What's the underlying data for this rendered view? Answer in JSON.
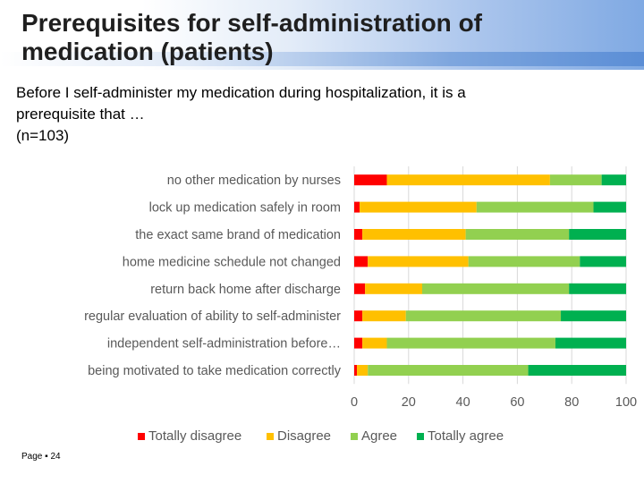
{
  "slide": {
    "title_line1": "Prerequisites for self-administration of",
    "title_line2": "medication  (patients)",
    "subtitle_line1": "Before I self-administer my medication during hospitalization, it is a",
    "subtitle_line2": "prerequisite that …",
    "subtitle_line3": "(n=103)",
    "footer": "Page ▪ 24"
  },
  "chart_data": {
    "type": "bar",
    "orientation": "horizontal",
    "stacked": true,
    "categories": [
      "no other medication by nurses",
      "lock up medication safely in room",
      "the exact same brand of medication",
      "home medicine schedule not changed",
      "return back home after discharge",
      "regular evaluation of ability to self-administer",
      "independent self-administration before…",
      "being motivated to take medication correctly"
    ],
    "series": [
      {
        "name": "Totally disagree",
        "color": "#ff0000",
        "values": [
          12,
          2,
          3,
          5,
          4,
          3,
          3,
          1
        ]
      },
      {
        "name": "Disagree",
        "color": "#ffc000",
        "values": [
          60,
          43,
          38,
          37,
          21,
          16,
          9,
          4
        ]
      },
      {
        "name": "Agree",
        "color": "#92d050",
        "values": [
          19,
          43,
          38,
          41,
          54,
          57,
          62,
          59
        ]
      },
      {
        "name": "Totally agree",
        "color": "#00b050",
        "values": [
          9,
          12,
          21,
          17,
          21,
          24,
          26,
          36
        ]
      }
    ],
    "xlim": [
      0,
      100
    ],
    "xticks": [
      0,
      20,
      40,
      60,
      80,
      100
    ],
    "grid": true,
    "legend": "bottom"
  }
}
